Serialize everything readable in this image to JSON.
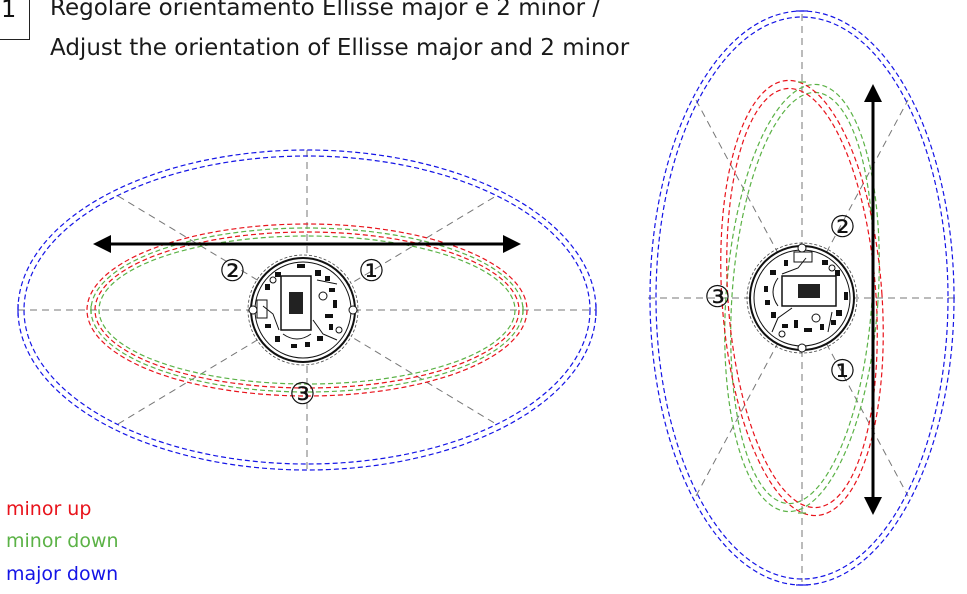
{
  "header": {
    "step_number": "1",
    "title_it": "Regolare orientamento Ellisse major e 2 minor /",
    "title_en": "Adjust the orientation of Ellisse major and 2 minor"
  },
  "legend": [
    {
      "label": "minor up",
      "color": "#e8131b"
    },
    {
      "label": "minor down",
      "color": "#5bb246"
    },
    {
      "label": "major down",
      "color": "#1414e6"
    }
  ],
  "colors": {
    "minor_up": "#e8131b",
    "minor_down": "#5bb246",
    "major_down": "#1414e6",
    "guide": "#777777",
    "arrow": "#000000"
  },
  "diagrams": {
    "left": {
      "orientation": "horizontal",
      "markers": [
        "②",
        "①",
        "③"
      ]
    },
    "right": {
      "orientation": "vertical",
      "markers": [
        "②",
        "③",
        "①"
      ]
    }
  }
}
